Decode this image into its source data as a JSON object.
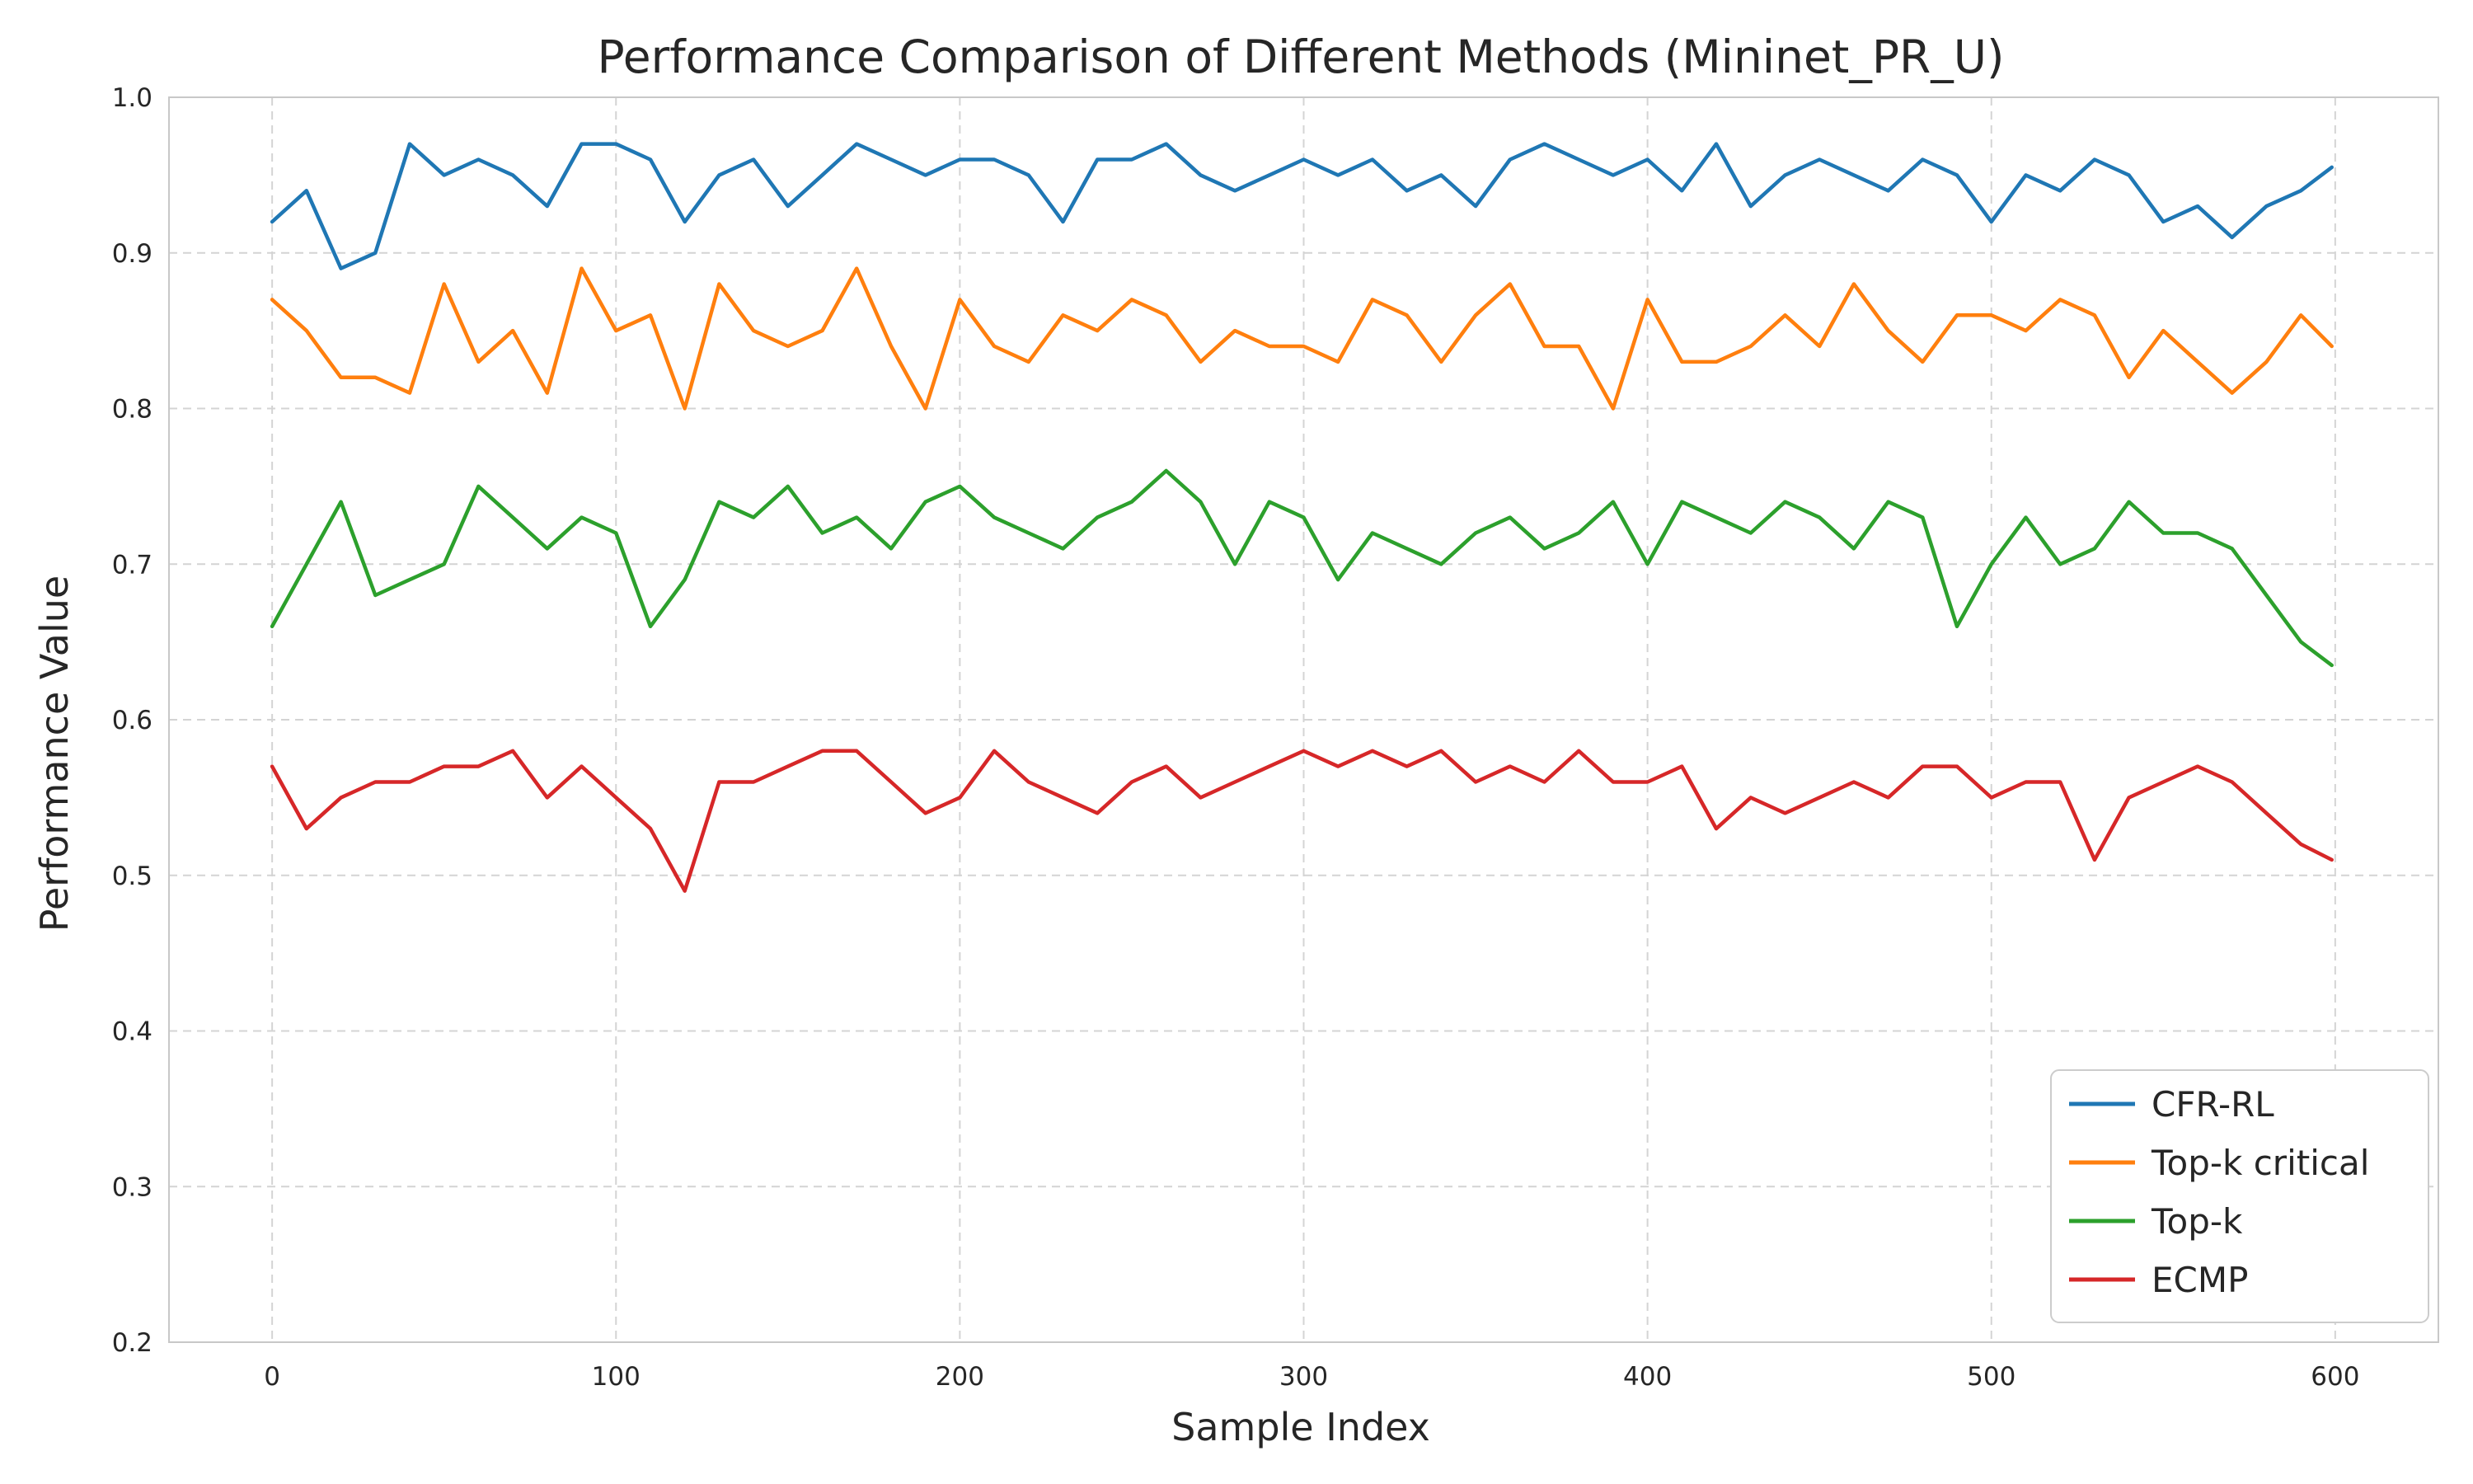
{
  "chart_data": {
    "type": "line",
    "title": "Performance Comparison of Different Methods (Mininet_PR_U)",
    "xlabel": "Sample Index",
    "ylabel": "Performance Value",
    "xlim": [
      -30,
      630
    ],
    "ylim": [
      0.2,
      1.0
    ],
    "x_ticks": [
      0,
      100,
      200,
      300,
      400,
      500,
      600
    ],
    "y_ticks": [
      0.2,
      0.3,
      0.4,
      0.5,
      0.6,
      0.7,
      0.8,
      0.9,
      1.0
    ],
    "x_tick_labels": [
      "0",
      "100",
      "200",
      "300",
      "400",
      "500",
      "600"
    ],
    "y_tick_labels": [
      "0.2",
      "0.3",
      "0.4",
      "0.5",
      "0.6",
      "0.7",
      "0.8",
      "0.9",
      "1.0"
    ],
    "grid": true,
    "legend_position": "lower-right",
    "x": [
      0,
      10,
      20,
      30,
      40,
      50,
      60,
      70,
      80,
      90,
      100,
      110,
      120,
      130,
      140,
      150,
      160,
      170,
      180,
      190,
      200,
      210,
      220,
      230,
      240,
      250,
      260,
      270,
      280,
      290,
      300,
      310,
      320,
      330,
      340,
      350,
      360,
      370,
      380,
      390,
      400,
      410,
      420,
      430,
      440,
      450,
      460,
      470,
      480,
      490,
      500,
      510,
      520,
      530,
      540,
      550,
      560,
      570,
      580,
      590,
      599
    ],
    "series": [
      {
        "name": "CFR-RL",
        "color": "#1f77b4",
        "values": [
          0.92,
          0.94,
          0.89,
          0.9,
          0.97,
          0.95,
          0.96,
          0.95,
          0.93,
          0.97,
          0.97,
          0.96,
          0.92,
          0.95,
          0.96,
          0.93,
          0.95,
          0.97,
          0.96,
          0.95,
          0.96,
          0.96,
          0.95,
          0.92,
          0.96,
          0.96,
          0.97,
          0.95,
          0.94,
          0.95,
          0.96,
          0.95,
          0.96,
          0.94,
          0.95,
          0.93,
          0.96,
          0.97,
          0.96,
          0.95,
          0.96,
          0.94,
          0.97,
          0.93,
          0.95,
          0.96,
          0.95,
          0.94,
          0.96,
          0.95,
          0.92,
          0.95,
          0.94,
          0.96,
          0.95,
          0.92,
          0.93,
          0.91,
          0.93,
          0.94,
          0.955
        ]
      },
      {
        "name": "Top-k critical",
        "color": "#ff7f0e",
        "values": [
          0.87,
          0.85,
          0.82,
          0.82,
          0.81,
          0.88,
          0.83,
          0.85,
          0.81,
          0.89,
          0.85,
          0.86,
          0.8,
          0.88,
          0.85,
          0.84,
          0.85,
          0.89,
          0.84,
          0.8,
          0.87,
          0.84,
          0.83,
          0.86,
          0.85,
          0.87,
          0.86,
          0.83,
          0.85,
          0.84,
          0.84,
          0.83,
          0.87,
          0.86,
          0.83,
          0.86,
          0.88,
          0.84,
          0.84,
          0.8,
          0.87,
          0.83,
          0.83,
          0.84,
          0.86,
          0.84,
          0.88,
          0.85,
          0.83,
          0.86,
          0.86,
          0.85,
          0.87,
          0.86,
          0.82,
          0.85,
          0.83,
          0.81,
          0.83,
          0.86,
          0.84
        ]
      },
      {
        "name": "Top-k",
        "color": "#2ca02c",
        "values": [
          0.66,
          0.7,
          0.74,
          0.68,
          0.69,
          0.7,
          0.75,
          0.73,
          0.71,
          0.73,
          0.72,
          0.66,
          0.69,
          0.74,
          0.73,
          0.75,
          0.72,
          0.73,
          0.71,
          0.74,
          0.75,
          0.73,
          0.72,
          0.71,
          0.73,
          0.74,
          0.76,
          0.74,
          0.7,
          0.74,
          0.73,
          0.69,
          0.72,
          0.71,
          0.7,
          0.72,
          0.73,
          0.71,
          0.72,
          0.74,
          0.7,
          0.74,
          0.73,
          0.72,
          0.74,
          0.73,
          0.71,
          0.74,
          0.73,
          0.66,
          0.7,
          0.73,
          0.7,
          0.71,
          0.74,
          0.72,
          0.72,
          0.71,
          0.68,
          0.65,
          0.635
        ]
      },
      {
        "name": "ECMP",
        "color": "#d62728",
        "values": [
          0.57,
          0.53,
          0.55,
          0.56,
          0.56,
          0.57,
          0.57,
          0.58,
          0.55,
          0.57,
          0.55,
          0.53,
          0.49,
          0.56,
          0.56,
          0.57,
          0.58,
          0.58,
          0.56,
          0.54,
          0.55,
          0.58,
          0.56,
          0.55,
          0.54,
          0.56,
          0.57,
          0.55,
          0.56,
          0.57,
          0.58,
          0.57,
          0.58,
          0.57,
          0.58,
          0.56,
          0.57,
          0.56,
          0.58,
          0.56,
          0.56,
          0.57,
          0.53,
          0.55,
          0.54,
          0.55,
          0.56,
          0.55,
          0.57,
          0.57,
          0.55,
          0.56,
          0.56,
          0.51,
          0.55,
          0.56,
          0.57,
          0.56,
          0.54,
          0.52,
          0.51
        ]
      }
    ]
  }
}
